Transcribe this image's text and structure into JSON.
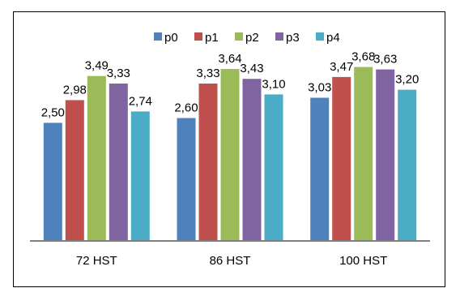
{
  "chart_data": {
    "type": "bar",
    "categories": [
      "72 HST",
      "86 HST",
      "100 HST"
    ],
    "series": [
      {
        "name": "p0",
        "values": [
          2.5,
          2.6,
          3.03
        ],
        "labels": [
          "2,50",
          "2,60",
          "3,03"
        ],
        "color": "#4F81BD"
      },
      {
        "name": "p1",
        "values": [
          2.98,
          3.33,
          3.47
        ],
        "labels": [
          "2,98",
          "3,33",
          "3,47"
        ],
        "color": "#C0504D"
      },
      {
        "name": "p2",
        "values": [
          3.49,
          3.64,
          3.68
        ],
        "labels": [
          "3,49",
          "3,64",
          "3,68"
        ],
        "color": "#9BBB59"
      },
      {
        "name": "p3",
        "values": [
          3.33,
          3.43,
          3.63
        ],
        "labels": [
          "3,33",
          "3,43",
          "3,63"
        ],
        "color": "#8064A2"
      },
      {
        "name": "p4",
        "values": [
          2.74,
          3.1,
          3.2
        ],
        "labels": [
          "2,74",
          "3,10",
          "3,20"
        ],
        "color": "#4BACC6"
      }
    ],
    "title": "",
    "xlabel": "",
    "ylabel": "",
    "ylim": [
      0,
      4
    ],
    "grid": false,
    "legend": "top-center",
    "axis_color": "#808080"
  }
}
